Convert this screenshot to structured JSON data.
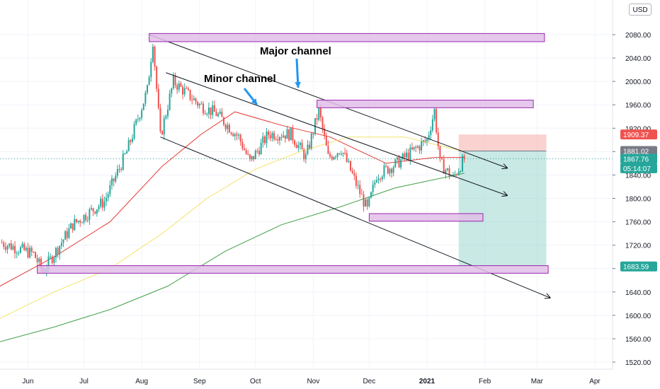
{
  "chart_data": {
    "type": "candlestick",
    "currency": "USD",
    "y_ticks": [
      "2080.00",
      "2040.00",
      "2000.00",
      "1960.00",
      "1920.00",
      "1880.00",
      "1840.00",
      "1800.00",
      "1760.00",
      "1720.00",
      "1680.00",
      "1640.00",
      "1600.00",
      "1560.00",
      "1520.00"
    ],
    "y_tick_values": [
      2080,
      2040,
      2000,
      1960,
      1920,
      1880,
      1840,
      1800,
      1760,
      1720,
      1680,
      1640,
      1600,
      1560,
      1520
    ],
    "ylim": [
      1505,
      2122
    ],
    "x_labels": [
      "Jun",
      "Jul",
      "Aug",
      "Sep",
      "Oct",
      "Nov",
      "Dec",
      "2021",
      "Feb",
      "Mar",
      "Apr"
    ],
    "x_label_dates": [
      "2020-06-01",
      "2020-07-01",
      "2020-08-01",
      "2020-09-01",
      "2020-10-01",
      "2020-11-01",
      "2020-12-01",
      "2021-01-01",
      "2021-02-01",
      "2021-03-01",
      "2021-04-01"
    ],
    "x_range": [
      "2020-05-17",
      "2021-04-20"
    ],
    "price_tags": [
      {
        "label": "1909.37",
        "value": 1909.37,
        "color": "#ef5350"
      },
      {
        "label": "1881.02",
        "value": 1881.02,
        "color": "#787b86"
      },
      {
        "label": "1867.76",
        "value": 1867.76,
        "color": "#26a69a"
      },
      {
        "label": "05:14:07",
        "value": 1851.5,
        "color": "#26a69a"
      },
      {
        "label": "1683.59",
        "value": 1683.59,
        "color": "#26a69a"
      }
    ],
    "last_price": 1867.76,
    "annotations": [
      {
        "text": "Major channel"
      },
      {
        "text": "Minor channel"
      }
    ],
    "zones": [
      {
        "from": "2020-08-05",
        "to": "2021-03-05",
        "low": 2068,
        "high": 2082
      },
      {
        "from": "2020-11-03",
        "to": "2021-02-27",
        "low": 1955,
        "high": 1968
      },
      {
        "from": "2020-12-01",
        "to": "2021-01-31",
        "low": 1761,
        "high": 1774
      },
      {
        "from": "2020-06-06",
        "to": "2021-03-07",
        "low": 1672,
        "high": 1685
      }
    ],
    "trendlines": [
      {
        "name": "major-upper",
        "x1": "2020-08-05",
        "y1": 2080,
        "x2": "2021-02-13",
        "y2": 1852
      },
      {
        "name": "minor-upper",
        "x1": "2020-08-14",
        "y1": 2015,
        "x2": "2021-02-13",
        "y2": 1805
      },
      {
        "name": "minor-lower",
        "x1": "2020-08-11",
        "y1": 1905,
        "x2": "2021-03-08",
        "y2": 1630
      }
    ],
    "position": {
      "from": "2021-01-18",
      "to": "2021-03-06",
      "stop": 1909.37,
      "entry": 1881.02,
      "target": 1683.59,
      "stop_color": "#f7b5b3",
      "target_color": "#93d3c9"
    },
    "moving_averages": [
      {
        "color": "#e53935",
        "points": [
          [
            "2020-05-17",
            1650
          ],
          [
            "2020-06-15",
            1700
          ],
          [
            "2020-07-15",
            1760
          ],
          [
            "2020-08-12",
            1855
          ],
          [
            "2020-09-02",
            1910
          ],
          [
            "2020-09-20",
            1948
          ],
          [
            "2020-10-15",
            1925
          ],
          [
            "2020-11-10",
            1905
          ],
          [
            "2020-12-10",
            1860
          ],
          [
            "2021-01-05",
            1870
          ],
          [
            "2021-01-21",
            1870
          ]
        ]
      },
      {
        "color": "#f4e36b",
        "points": [
          [
            "2020-05-17",
            1595
          ],
          [
            "2020-06-15",
            1640
          ],
          [
            "2020-07-15",
            1680
          ],
          [
            "2020-08-12",
            1740
          ],
          [
            "2020-09-05",
            1800
          ],
          [
            "2020-10-01",
            1850
          ],
          [
            "2020-10-25",
            1880
          ],
          [
            "2020-11-20",
            1905
          ],
          [
            "2020-12-20",
            1905
          ],
          [
            "2021-01-21",
            1880
          ]
        ]
      },
      {
        "color": "#43a047",
        "points": [
          [
            "2020-05-17",
            1555
          ],
          [
            "2020-06-15",
            1580
          ],
          [
            "2020-07-15",
            1610
          ],
          [
            "2020-08-15",
            1650
          ],
          [
            "2020-09-15",
            1710
          ],
          [
            "2020-10-15",
            1755
          ],
          [
            "2020-11-15",
            1785
          ],
          [
            "2020-12-15",
            1818
          ],
          [
            "2021-01-21",
            1843
          ]
        ]
      }
    ],
    "candles_anchor": [
      [
        "2020-05-17",
        1725
      ],
      [
        "2020-06-04",
        1705
      ],
      [
        "2020-06-09",
        1675
      ],
      [
        "2020-06-25",
        1755
      ],
      [
        "2020-07-12",
        1795
      ],
      [
        "2020-07-24",
        1880
      ],
      [
        "2020-08-04",
        1985
      ],
      [
        "2020-08-07",
        2070
      ],
      [
        "2020-08-11",
        1905
      ],
      [
        "2020-08-18",
        2000
      ],
      [
        "2020-09-01",
        1960
      ],
      [
        "2020-09-10",
        1945
      ],
      [
        "2020-09-22",
        1905
      ],
      [
        "2020-09-28",
        1862
      ],
      [
        "2020-10-08",
        1910
      ],
      [
        "2020-10-20",
        1910
      ],
      [
        "2020-10-28",
        1870
      ],
      [
        "2020-11-04",
        1950
      ],
      [
        "2020-11-09",
        1870
      ],
      [
        "2020-11-16",
        1885
      ],
      [
        "2020-11-30",
        1780
      ],
      [
        "2020-12-05",
        1840
      ],
      [
        "2020-12-16",
        1860
      ],
      [
        "2020-12-24",
        1880
      ],
      [
        "2021-01-01",
        1900
      ],
      [
        "2021-01-05",
        1950
      ],
      [
        "2021-01-08",
        1860
      ],
      [
        "2021-01-15",
        1835
      ],
      [
        "2021-01-21",
        1867.76
      ]
    ]
  }
}
